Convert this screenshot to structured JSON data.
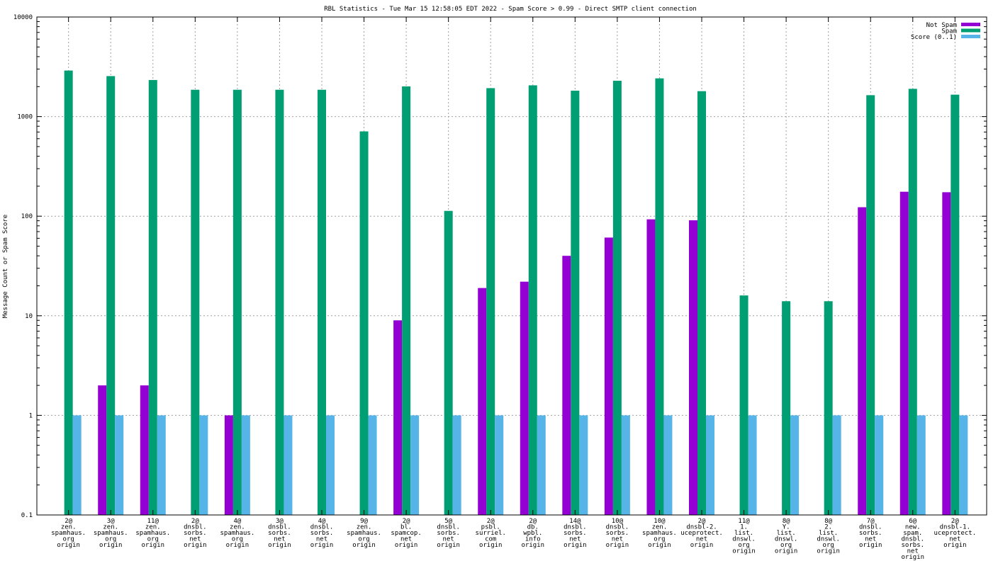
{
  "chart_data": {
    "type": "bar",
    "title": "RBL Statistics - Tue Mar 15 12:58:05 EDT 2022 - Spam Score > 0.99 - Direct SMTP client connection",
    "ylabel": "Message Count or Spam Score",
    "xlabel": "",
    "yscale": "log",
    "ylim": [
      0.1,
      10000
    ],
    "yticks": [
      {
        "value": 0.1,
        "label": "0.1"
      },
      {
        "value": 1,
        "label": "1"
      },
      {
        "value": 10,
        "label": "10"
      },
      {
        "value": 100,
        "label": "100"
      },
      {
        "value": 1000,
        "label": "1000"
      },
      {
        "value": 10000,
        "label": "10000"
      }
    ],
    "grid": true,
    "legend_position": "top-right",
    "categories": [
      [
        "2@",
        "zen.",
        "spamhaus.",
        "org",
        "origin"
      ],
      [
        "3@",
        "zen.",
        "spamhaus.",
        "org",
        "origin"
      ],
      [
        "11@",
        "zen.",
        "spamhaus.",
        "org",
        "origin"
      ],
      [
        "2@",
        "dnsbl.",
        "sorbs.",
        "net",
        "origin"
      ],
      [
        "4@",
        "zen.",
        "spamhaus.",
        "org",
        "origin"
      ],
      [
        "3@",
        "dnsbl.",
        "sorbs.",
        "net",
        "origin"
      ],
      [
        "4@",
        "dnsbl.",
        "sorbs.",
        "net",
        "origin"
      ],
      [
        "9@",
        "zen.",
        "spamhaus.",
        "org",
        "origin"
      ],
      [
        "2@",
        "bl.",
        "spamcop.",
        "net",
        "origin"
      ],
      [
        "5@",
        "dnsbl.",
        "sorbs.",
        "net",
        "origin"
      ],
      [
        "2@",
        "psbl.",
        "surriel.",
        "com",
        "origin"
      ],
      [
        "2@",
        "db.",
        "wpbl.",
        "info",
        "origin"
      ],
      [
        "14@",
        "dnsbl.",
        "sorbs.",
        "net",
        "origin"
      ],
      [
        "10@",
        "dnsbl.",
        "sorbs.",
        "net",
        "origin"
      ],
      [
        "10@",
        "zen.",
        "spamhaus.",
        "org",
        "origin"
      ],
      [
        "2@",
        "dnsbl-2.",
        "uceprotect.",
        "net",
        "origin"
      ],
      [
        "11@",
        "1.",
        "list.",
        "dnswl.",
        "org",
        "origin"
      ],
      [
        "8@",
        "Y.",
        "list.",
        "dnswl.",
        "org",
        "origin"
      ],
      [
        "8@",
        "2.",
        "list.",
        "dnswl.",
        "org",
        "origin"
      ],
      [
        "7@",
        "dnsbl.",
        "sorbs.",
        "net",
        "origin"
      ],
      [
        "6@",
        "new.",
        "spam.",
        "dnsbl.",
        "sorbs.",
        "net",
        "origin"
      ],
      [
        "2@",
        "dnsbl-1.",
        "uceprotect.",
        "net",
        "origin"
      ]
    ],
    "series": [
      {
        "name": "Not Spam",
        "color": "#9400d3",
        "values": [
          0,
          2,
          2,
          0,
          1,
          0,
          0,
          0,
          9,
          0,
          19,
          22,
          40,
          61,
          93,
          91,
          0,
          0,
          0,
          123,
          176,
          174
        ]
      },
      {
        "name": "Spam",
        "color": "#009e73",
        "values": [
          2900,
          2550,
          2330,
          1860,
          1860,
          1860,
          1860,
          710,
          2010,
          113,
          1930,
          2060,
          1820,
          2290,
          2420,
          1800,
          16,
          14,
          14,
          1640,
          1900,
          1660
        ]
      },
      {
        "name": "Score (0..1)",
        "color": "#56b4e9",
        "values": [
          1,
          1,
          1,
          1,
          1,
          1,
          1,
          1,
          1,
          1,
          1,
          1,
          1,
          1,
          1,
          1,
          1,
          1,
          1,
          1,
          1,
          1
        ]
      }
    ]
  }
}
